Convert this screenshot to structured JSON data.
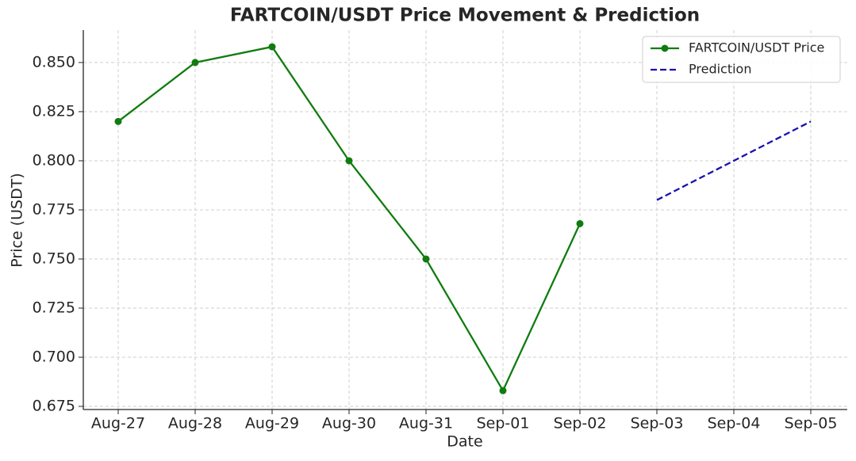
{
  "chart_data": {
    "type": "line",
    "title": "FARTCOIN/USDT Price Movement & Prediction",
    "x_label": "Date",
    "y_label": "Price (USDT)",
    "categories": [
      "Aug-27",
      "Aug-28",
      "Aug-29",
      "Aug-30",
      "Aug-31",
      "Sep-01",
      "Sep-02",
      "Sep-03",
      "Sep-04",
      "Sep-05"
    ],
    "series": [
      {
        "name": "FARTCOIN/USDT Price",
        "color": "#107c10",
        "style": "solid",
        "marker": true,
        "values": [
          0.82,
          0.85,
          0.858,
          0.8,
          0.75,
          0.683,
          0.768,
          null,
          null,
          null
        ]
      },
      {
        "name": "Prediction",
        "color": "#1a10b0",
        "style": "dashed",
        "marker": false,
        "values": [
          null,
          null,
          null,
          null,
          null,
          null,
          null,
          0.78,
          0.8,
          0.82
        ]
      }
    ],
    "ylim": [
      0.6734,
      0.8665
    ],
    "yticks": [
      0.675,
      {
        "value": 0.7,
        "label": "0.700"
      },
      0.725,
      {
        "value": 0.75,
        "label": "0.750"
      },
      0.775,
      {
        "value": 0.8,
        "label": "0.800"
      },
      0.825,
      {
        "value": 0.85,
        "label": "0.850"
      }
    ],
    "grid": true,
    "legend": "upper right"
  }
}
